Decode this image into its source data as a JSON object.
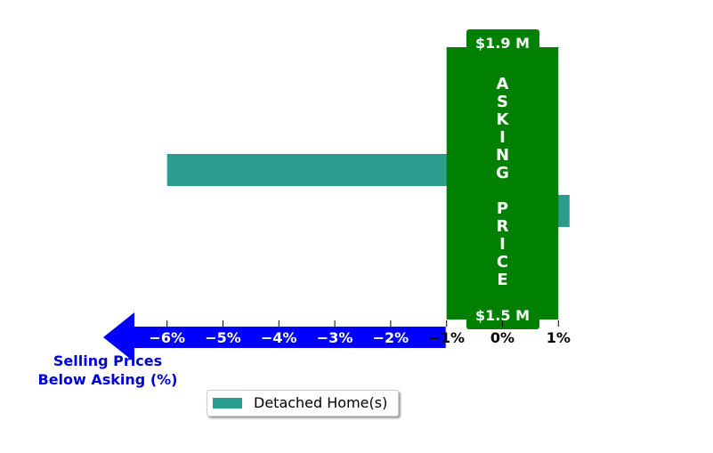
{
  "chart_data": {
    "type": "bar",
    "orientation": "horizontal",
    "series": [
      {
        "name": "Detached Home(s)",
        "color": "#2a9d8f",
        "values": [
          -6.0,
          1.2
        ]
      }
    ],
    "xlim": [
      -6.5,
      1.3
    ],
    "x_ticks": [
      {
        "value": -6,
        "label": "−6%"
      },
      {
        "value": -5,
        "label": "−5%"
      },
      {
        "value": -4,
        "label": "−4%"
      },
      {
        "value": -3,
        "label": "−3%"
      },
      {
        "value": -2,
        "label": "−2%"
      },
      {
        "value": -1,
        "label": "−1%"
      },
      {
        "value": 0,
        "label": "0%"
      },
      {
        "value": 1,
        "label": "1%"
      }
    ],
    "xlabel": "Selling Prices\nBelow Asking (%)",
    "asking_price_band": {
      "label": "ASKING PRICE",
      "top_price": "$1.9 M",
      "bottom_price": "$1.5 M",
      "color": "#008000"
    },
    "arrow_color": "#0000ff",
    "legend": {
      "position": "bottom-center",
      "label": "Detached Home(s)"
    },
    "grid": false
  }
}
